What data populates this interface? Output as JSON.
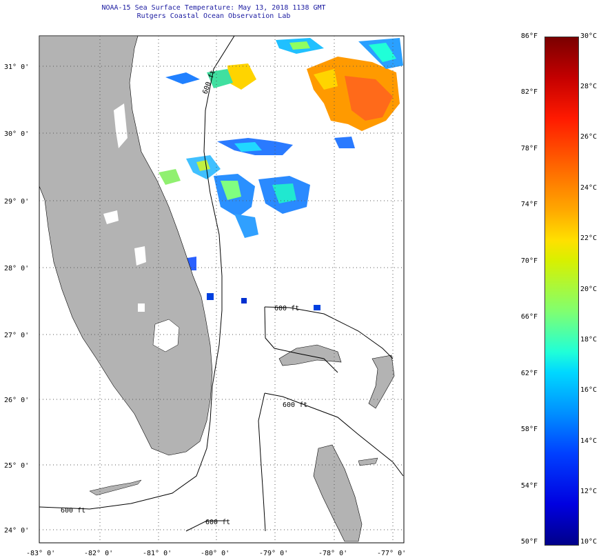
{
  "title_line1": "NOAA-15 Sea Surface Temperature:  May 13, 2018 1138 GMT",
  "title_line2": "Rutgers Coastal Ocean Observation Lab",
  "lat_labels": [
    "31° 0'",
    "30° 0'",
    "29° 0'",
    "28° 0'",
    "27° 0'",
    "26° 0'",
    "25° 0'",
    "24° 0'"
  ],
  "lon_labels": [
    "-83° 0'",
    "-82° 0'",
    "-81° 0'",
    "-80° 0'",
    "-79° 0'",
    "-78° 0'",
    "-77° 0'"
  ],
  "contour_label": "600 ft",
  "colorbar": {
    "f_labels": [
      "86°F",
      "82°F",
      "78°F",
      "74°F",
      "70°F",
      "66°F",
      "62°F",
      "58°F",
      "54°F",
      "50°F"
    ],
    "c_labels": [
      "30°C",
      "28°C",
      "26°C",
      "24°C",
      "22°C",
      "20°C",
      "18°C",
      "16°C",
      "14°C",
      "12°C",
      "10°C"
    ]
  },
  "colors": {
    "land": "#b3b3b3",
    "title": "#1a1aa0",
    "frame": "#000000"
  }
}
